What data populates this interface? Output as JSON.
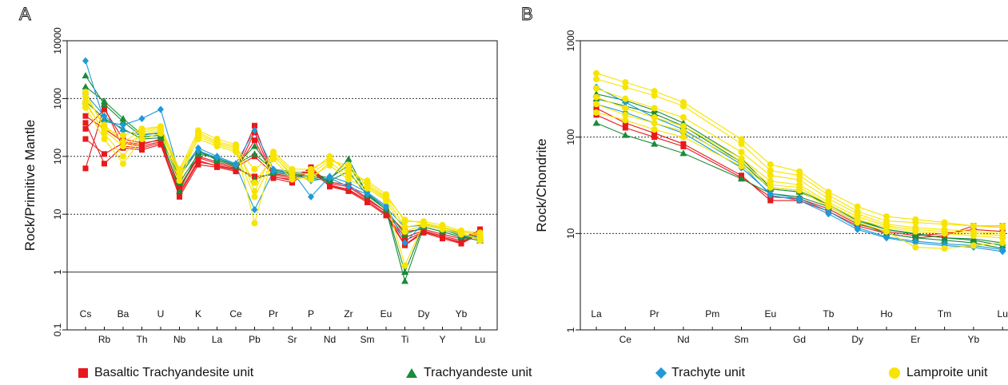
{
  "colors": {
    "basaltic_trachyandesite": "#e8191c",
    "trachyandesite": "#1a8c3a",
    "trachyte": "#1e9ad6",
    "lamproite": "#f7e400"
  },
  "legend": [
    {
      "label": "Basaltic Trachyandesite unit",
      "color": "#e8191c",
      "marker": "square"
    },
    {
      "label": "Trachyandeste unit",
      "color": "#1a8c3a",
      "marker": "triangle"
    },
    {
      "label": "Trachyte unit",
      "color": "#1e9ad6",
      "marker": "diamond"
    },
    {
      "label": "Lamproite unit",
      "color": "#f7e400",
      "marker": "circle"
    }
  ],
  "chart_data": [
    {
      "panel": "A",
      "type": "line",
      "ylabel": "Rock/Primitive Mantle",
      "yscale": "log",
      "ylim": [
        0.1,
        10000
      ],
      "yticks": [
        "0.1",
        "1",
        "10",
        "100",
        "1000",
        "10000"
      ],
      "grid": "horizontal dotted at 10, 100, 1000",
      "categories": [
        "Cs",
        "Rb",
        "Ba",
        "Th",
        "U",
        "Nb",
        "K",
        "La",
        "Ce",
        "Pb",
        "Pr",
        "Sr",
        "P",
        "Nd",
        "Zr",
        "Sm",
        "Eu",
        "Ti",
        "Dy",
        "Y",
        "Yb",
        "Lu"
      ],
      "upper_tick_labels": [
        "Cs",
        "Ba",
        "U",
        "K",
        "Ce",
        "Pr",
        "P",
        "Zr",
        "Eu",
        "Dy",
        "Yb"
      ],
      "lower_tick_labels": [
        "Rb",
        "Th",
        "Nb",
        "La",
        "Pb",
        "Sr",
        "Nd",
        "Sm",
        "Ti",
        "Y",
        "Lu"
      ],
      "series": [
        {
          "group": "Basaltic Trachyandesite unit",
          "color": "#e8191c",
          "marker": "square",
          "values": [
            200,
            110,
            170,
            150,
            180,
            22,
            80,
            70,
            60,
            340,
            45,
            38,
            65,
            32,
            27,
            17,
            10,
            3,
            5,
            4,
            3.2,
            4.8
          ]
        },
        {
          "group": "Basaltic Trachyandesite unit",
          "color": "#e8191c",
          "marker": "square",
          "values": [
            62,
            720,
            140,
            130,
            160,
            20,
            72,
            65,
            55,
            260,
            42,
            35,
            60,
            30,
            25,
            16,
            9.5,
            2.9,
            4.8,
            3.8,
            3.1,
            4.6
          ]
        },
        {
          "group": "Basaltic Trachyandesite unit",
          "color": "#e8191c",
          "marker": "square",
          "values": [
            380,
            75,
            150,
            140,
            170,
            24,
            85,
            68,
            58,
            190,
            44,
            40,
            55,
            31,
            26,
            17,
            10,
            3.5,
            5,
            4,
            3.3,
            5.2
          ]
        },
        {
          "group": "Basaltic Trachyandesite unit",
          "color": "#e8191c",
          "marker": "square",
          "values": [
            300,
            650,
            200,
            170,
            190,
            28,
            95,
            75,
            62,
            45,
            48,
            42,
            58,
            34,
            30,
            18,
            11,
            4,
            5.2,
            4.2,
            3.5,
            5.5
          ]
        },
        {
          "group": "Basaltic Trachyandesite unit",
          "color": "#e8191c",
          "marker": "square",
          "values": [
            500,
            300,
            180,
            160,
            200,
            30,
            100,
            80,
            65,
            100,
            50,
            45,
            60,
            36,
            32,
            19,
            11,
            5,
            5.5,
            4.5,
            3.8,
            5.3
          ]
        },
        {
          "group": "Trachyandeste unit",
          "color": "#1a8c3a",
          "marker": "triangle",
          "values": [
            2500,
            800,
            400,
            220,
            230,
            25,
            120,
            90,
            70,
            150,
            55,
            50,
            45,
            40,
            90,
            22,
            12,
            0.7,
            6,
            5,
            4,
            3.5
          ]
        },
        {
          "group": "Trachyandeste unit",
          "color": "#1a8c3a",
          "marker": "triangle",
          "values": [
            1600,
            900,
            450,
            240,
            250,
            35,
            110,
            95,
            72,
            110,
            58,
            52,
            50,
            42,
            70,
            23,
            13,
            1,
            6.5,
            5.5,
            4.2,
            3.8
          ]
        },
        {
          "group": "Trachyandeste unit",
          "color": "#1a8c3a",
          "marker": "triangle",
          "values": [
            900,
            450,
            300,
            200,
            210,
            45,
            130,
            85,
            68,
            40,
            52,
            48,
            42,
            38,
            55,
            21,
            12,
            4.5,
            6,
            5,
            4,
            4
          ]
        },
        {
          "group": "Trachyte unit",
          "color": "#1e9ad6",
          "marker": "diamond",
          "values": [
            4500,
            400,
            350,
            450,
            650,
            50,
            140,
            100,
            75,
            280,
            60,
            55,
            20,
            45,
            35,
            24,
            14,
            3.2,
            7,
            6,
            4.5,
            4
          ]
        },
        {
          "group": "Trachyte unit",
          "color": "#1e9ad6",
          "marker": "diamond",
          "values": [
            1200,
            500,
            280,
            230,
            260,
            55,
            125,
            95,
            70,
            12,
            55,
            50,
            38,
            42,
            30,
            22,
            13,
            6,
            6.5,
            5.5,
            4.3,
            3.9
          ]
        },
        {
          "group": "Lamproite unit",
          "color": "#f7e400",
          "marker": "circle",
          "values": [
            1300,
            300,
            230,
            300,
            330,
            60,
            280,
            200,
            160,
            25,
            120,
            60,
            60,
            90,
            60,
            35,
            20,
            8,
            7,
            6,
            5,
            4.5
          ]
        },
        {
          "group": "Lamproite unit",
          "color": "#f7e400",
          "marker": "circle",
          "values": [
            900,
            250,
            100,
            260,
            300,
            45,
            260,
            180,
            150,
            7,
            110,
            55,
            55,
            100,
            50,
            38,
            22,
            7.5,
            7.5,
            6.5,
            5.2,
            4.8
          ]
        },
        {
          "group": "Lamproite unit",
          "color": "#f7e400",
          "marker": "circle",
          "values": [
            700,
            200,
            75,
            200,
            250,
            38,
            220,
            160,
            130,
            35,
            100,
            50,
            50,
            85,
            70,
            30,
            18,
            1.3,
            7,
            6,
            5,
            4.2
          ]
        },
        {
          "group": "Lamproite unit",
          "color": "#f7e400",
          "marker": "circle",
          "values": [
            1100,
            350,
            180,
            280,
            320,
            55,
            240,
            170,
            140,
            60,
            105,
            45,
            40,
            80,
            45,
            32,
            19,
            6,
            6.8,
            5.8,
            4.8,
            3.5
          ]
        },
        {
          "group": "Lamproite unit",
          "color": "#f7e400",
          "marker": "circle",
          "values": [
            800,
            280,
            150,
            240,
            280,
            50,
            200,
            150,
            120,
            20,
            90,
            40,
            45,
            70,
            40,
            28,
            17,
            5,
            6.5,
            5.5,
            4.5,
            3.8
          ]
        }
      ]
    },
    {
      "panel": "B",
      "type": "line",
      "ylabel": "Rock/Chondrite",
      "yscale": "log",
      "ylim": [
        1,
        1000
      ],
      "yticks": [
        "1",
        "10",
        "100",
        "1000"
      ],
      "grid": "horizontal dotted at 10, 100",
      "categories": [
        "La",
        "Ce",
        "Pr",
        "Nd",
        "Pm",
        "Sm",
        "Eu",
        "Gd",
        "Tb",
        "Dy",
        "Ho",
        "Er",
        "Tm",
        "Yb",
        "Lu"
      ],
      "upper_tick_labels": [
        "La",
        "Pr",
        "Pm",
        "Eu",
        "Tb",
        "Ho",
        "Tm",
        "Lu"
      ],
      "lower_tick_labels": [
        "Ce",
        "Nd",
        "Sm",
        "Gd",
        "Dy",
        "Er",
        "Yb"
      ],
      "series": [
        {
          "group": "Basaltic Trachyandesite unit",
          "color": "#e8191c",
          "marker": "square",
          "values": [
            200,
            140,
            110,
            85,
            null,
            40,
            22,
            22,
            17,
            12,
            10,
            9,
            9.5,
            12,
            12
          ]
        },
        {
          "group": "Basaltic Trachyandesite unit",
          "color": "#e8191c",
          "marker": "square",
          "values": [
            170,
            125,
            100,
            80,
            null,
            38,
            24,
            23,
            18,
            12.5,
            10.5,
            9.5,
            10,
            11,
            10.5
          ]
        },
        {
          "group": "Trachyandeste unit",
          "color": "#1a8c3a",
          "marker": "triangle",
          "values": [
            280,
            240,
            190,
            140,
            null,
            60,
            30,
            28,
            20,
            14,
            11,
            10,
            9,
            8.5,
            7.5
          ]
        },
        {
          "group": "Trachyandeste unit",
          "color": "#1a8c3a",
          "marker": "triangle",
          "values": [
            140,
            105,
            85,
            68,
            null,
            37,
            26,
            24,
            19,
            13,
            10,
            9,
            8.5,
            8,
            7
          ]
        },
        {
          "group": "Trachyandeste unit",
          "color": "#1a8c3a",
          "marker": "triangle",
          "values": [
            250,
            210,
            175,
            130,
            null,
            55,
            29,
            27,
            20,
            13.5,
            11,
            9.8,
            9,
            8.8,
            8
          ]
        },
        {
          "group": "Trachyte unit",
          "color": "#1e9ad6",
          "marker": "diamond",
          "values": [
            330,
            230,
            160,
            120,
            null,
            52,
            25,
            22,
            16,
            11,
            9,
            8,
            7.5,
            7.2,
            6.5
          ]
        },
        {
          "group": "Trachyte unit",
          "color": "#1e9ad6",
          "marker": "diamond",
          "values": [
            220,
            180,
            140,
            110,
            null,
            48,
            26,
            23,
            17,
            11.5,
            9.2,
            8.3,
            7.8,
            7.5,
            6.8
          ]
        },
        {
          "group": "Lamproite unit",
          "color": "#f7e400",
          "marker": "circle",
          "values": [
            460,
            370,
            300,
            230,
            null,
            95,
            52,
            44,
            27,
            19,
            15,
            14,
            13,
            12,
            12
          ]
        },
        {
          "group": "Lamproite unit",
          "color": "#f7e400",
          "marker": "circle",
          "values": [
            400,
            330,
            270,
            210,
            null,
            85,
            45,
            40,
            25,
            17,
            13.5,
            13,
            12.5,
            12,
            11.5
          ]
        },
        {
          "group": "Lamproite unit",
          "color": "#f7e400",
          "marker": "circle",
          "values": [
            320,
            250,
            200,
            160,
            null,
            70,
            40,
            36,
            23,
            16,
            12.5,
            11.5,
            11,
            10.5,
            10
          ]
        },
        {
          "group": "Lamproite unit",
          "color": "#f7e400",
          "marker": "circle",
          "values": [
            260,
            200,
            160,
            130,
            null,
            60,
            35,
            32,
            21,
            15,
            12,
            11,
            10.5,
            10,
            9.5
          ]
        },
        {
          "group": "Lamproite unit",
          "color": "#f7e400",
          "marker": "circle",
          "values": [
            220,
            170,
            140,
            115,
            null,
            55,
            32,
            30,
            20,
            14,
            11.5,
            10.5,
            10,
            9.5,
            9
          ]
        },
        {
          "group": "Lamproite unit",
          "color": "#f7e400",
          "marker": "circle",
          "values": [
            180,
            150,
            120,
            100,
            null,
            50,
            30,
            28,
            19,
            13,
            10.5,
            7.2,
            7,
            7.5,
            8
          ]
        }
      ]
    }
  ]
}
